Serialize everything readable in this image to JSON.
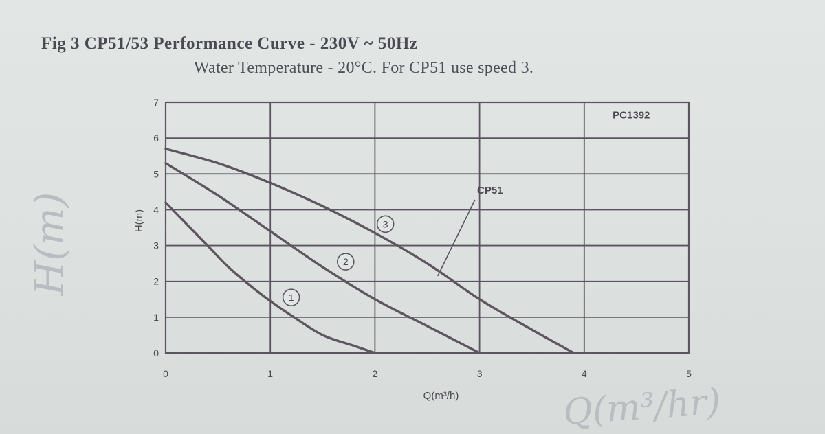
{
  "title": "Fig 3 CP51/53 Performance Curve - 230V ~ 50Hz",
  "subtitle": "Water Temperature - 20°C. For CP51 use speed 3.",
  "chart_data": {
    "type": "line",
    "title": "Fig 3 CP51/53 Performance Curve - 230V ~ 50Hz",
    "subtitle": "Water Temperature - 20°C. For CP51 use speed 3.",
    "xlabel": "Q(m³/h)",
    "ylabel": "H(m)",
    "xlim": [
      0,
      5
    ],
    "ylim": [
      0,
      7
    ],
    "x_ticks": [
      "0",
      "1",
      "2",
      "3",
      "4",
      "5"
    ],
    "y_ticks": [
      "0",
      "1",
      "2",
      "3",
      "4",
      "5",
      "6",
      "7"
    ],
    "grid": true,
    "series": [
      {
        "name": "1",
        "x": [
          0,
          0.2,
          0.4,
          0.6,
          0.8,
          1.0,
          1.2,
          1.5,
          1.8,
          2.0
        ],
        "y": [
          4.2,
          3.6,
          3.0,
          2.4,
          1.9,
          1.45,
          1.05,
          0.5,
          0.2,
          0.0
        ]
      },
      {
        "name": "2",
        "x": [
          0,
          0.5,
          1.0,
          1.5,
          2.0,
          2.5,
          3.0
        ],
        "y": [
          5.3,
          4.4,
          3.4,
          2.4,
          1.5,
          0.75,
          0.0
        ]
      },
      {
        "name": "3",
        "x": [
          0,
          0.5,
          1.0,
          1.5,
          2.0,
          2.5,
          3.0,
          3.5,
          3.9
        ],
        "y": [
          5.7,
          5.3,
          4.75,
          4.1,
          3.35,
          2.5,
          1.5,
          0.65,
          0.0
        ]
      }
    ],
    "curve_markers": [
      {
        "label": "1",
        "x": 1.2,
        "y": 1.55
      },
      {
        "label": "2",
        "x": 1.72,
        "y": 2.55
      },
      {
        "label": "3",
        "x": 2.1,
        "y": 3.6
      }
    ],
    "annotations": [
      {
        "text": "PC1392",
        "x": 4.45,
        "y": 6.55
      },
      {
        "text": "CP51",
        "x": 3.1,
        "y": 4.45,
        "points_to": {
          "x": 2.6,
          "y": 2.15
        }
      }
    ]
  },
  "handwriting": {
    "y_label": "H(m)",
    "x_label": "Q(m³/hr)"
  }
}
